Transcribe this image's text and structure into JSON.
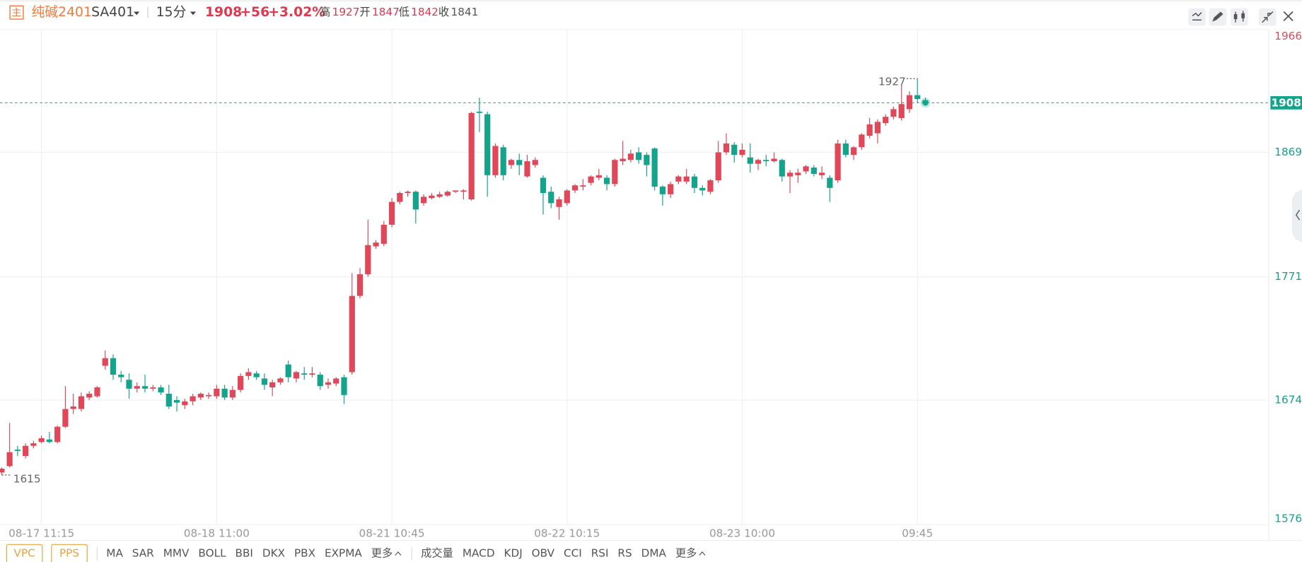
{
  "header": {
    "badge": "主",
    "symbol_name": "纯碱2401",
    "code": "SA401",
    "period": "15分",
    "last": "1908",
    "change": "+56",
    "change_pct": "+3.02%",
    "high_label": "高",
    "high": "1927",
    "open_label": "开",
    "open": "1847",
    "low_label": "低",
    "low": "1842",
    "close_label": "收",
    "close": "1841"
  },
  "chart_data": {
    "type": "candlestick",
    "categories": [
      null,
      null,
      null,
      null,
      null,
      "08-17 11:15",
      null,
      null,
      null,
      null,
      null,
      null,
      null,
      null,
      null,
      null,
      null,
      null,
      null,
      null,
      null,
      null,
      null,
      null,
      null,
      null,
      null,
      "08-18 11:00",
      null,
      null,
      null,
      null,
      null,
      null,
      null,
      null,
      null,
      null,
      null,
      null,
      null,
      null,
      null,
      null,
      null,
      null,
      null,
      null,
      null,
      "08-21 10:45",
      null,
      null,
      null,
      null,
      null,
      null,
      null,
      null,
      null,
      null,
      null,
      null,
      null,
      null,
      null,
      null,
      null,
      null,
      null,
      null,
      null,
      "08-22 10:15",
      null,
      null,
      null,
      null,
      null,
      null,
      null,
      null,
      null,
      null,
      null,
      null,
      null,
      null,
      null,
      null,
      null,
      null,
      null,
      null,
      null,
      "08-23 10:00",
      null,
      null,
      null,
      null,
      null,
      null,
      null,
      null,
      null,
      null,
      null,
      null,
      null,
      null,
      null,
      null,
      null,
      null,
      null,
      null,
      null,
      "09:45",
      null
    ],
    "open": [
      1617,
      1622,
      1635,
      1630,
      1638,
      1641,
      1643,
      1641,
      1653,
      1667,
      1667,
      1676,
      1677,
      1701,
      1707,
      1694,
      1690,
      1683,
      1685,
      1683,
      1684,
      1679,
      1674,
      1670,
      1673,
      1676,
      1677,
      1677,
      1683,
      1676,
      1682,
      1693,
      1695,
      1691,
      1684,
      1688,
      1702,
      1691,
      1695,
      1694,
      1694,
      1686,
      1687,
      1692,
      1696,
      1756,
      1773,
      1795,
      1797,
      1812,
      1830,
      1837,
      1838,
      1829,
      1833,
      1834,
      1835,
      1838,
      1838,
      1832,
      1901,
      1899,
      1851,
      1873,
      1859,
      1863,
      1850,
      1859,
      1849,
      1838,
      1826,
      1829,
      1839,
      1842,
      1845,
      1849,
      1849,
      1844,
      1862,
      1863,
      1869,
      1867,
      1872,
      1842,
      1836,
      1846,
      1846,
      1850,
      1841,
      1838,
      1847,
      1869,
      1875,
      1867,
      1865,
      1860,
      1863,
      1862,
      1863,
      1850,
      1851,
      1854,
      1857,
      1851,
      1849,
      1847,
      1876,
      1867,
      1873,
      1882,
      1884,
      1892,
      1897,
      1896,
      1903,
      1914,
      1910
    ],
    "high": [
      1621,
      1656,
      1638,
      1640,
      1642,
      1646,
      1649,
      1654,
      1685,
      1679,
      1680,
      1681,
      1685,
      1713,
      1710,
      1697,
      1695,
      1688,
      1694,
      1686,
      1686,
      1686,
      1677,
      1675,
      1679,
      1680,
      1680,
      1686,
      1686,
      1685,
      1695,
      1699,
      1697,
      1695,
      1690,
      1692,
      1705,
      1697,
      1700,
      1700,
      1696,
      1691,
      1692,
      1694,
      1774,
      1778,
      1816,
      1800,
      1815,
      1833,
      1838,
      1839,
      1839,
      1836,
      1837,
      1838,
      1839,
      1839,
      1840,
      1901,
      1912,
      1901,
      1876,
      1875,
      1864,
      1868,
      1867,
      1865,
      1851,
      1842,
      1834,
      1840,
      1844,
      1848,
      1851,
      1856,
      1851,
      1864,
      1878,
      1871,
      1873,
      1869,
      1873,
      1843,
      1846,
      1851,
      1856,
      1852,
      1843,
      1848,
      1878,
      1884,
      1877,
      1876,
      1876,
      1864,
      1867,
      1869,
      1864,
      1855,
      1856,
      1859,
      1859,
      1858,
      1851,
      1879,
      1879,
      1874,
      1884,
      1896,
      1895,
      1899,
      1905,
      1922,
      1917,
      1927,
      1912
    ],
    "low": [
      1615,
      1621,
      1630,
      1628,
      1636,
      1640,
      1640,
      1640,
      1652,
      1663,
      1665,
      1674,
      1676,
      1698,
      1690,
      1688,
      1675,
      1680,
      1680,
      1681,
      1678,
      1667,
      1665,
      1667,
      1670,
      1674,
      1675,
      1675,
      1674,
      1674,
      1680,
      1690,
      1690,
      1682,
      1677,
      1686,
      1688,
      1688,
      1690,
      1692,
      1682,
      1683,
      1685,
      1671,
      1694,
      1754,
      1771,
      1793,
      1795,
      1810,
      1828,
      1834,
      1813,
      1827,
      1832,
      1833,
      1834,
      1837,
      1832,
      1831,
      1885,
      1834,
      1849,
      1847,
      1856,
      1851,
      1849,
      1857,
      1820,
      1825,
      1816,
      1827,
      1837,
      1839,
      1843,
      1847,
      1839,
      1842,
      1859,
      1861,
      1860,
      1850,
      1839,
      1827,
      1833,
      1844,
      1844,
      1837,
      1835,
      1836,
      1845,
      1867,
      1861,
      1865,
      1853,
      1855,
      1858,
      1861,
      1846,
      1837,
      1845,
      1852,
      1850,
      1848,
      1830,
      1845,
      1865,
      1863,
      1871,
      1880,
      1876,
      1890,
      1895,
      1894,
      1900,
      1908,
      1906
    ],
    "close": [
      1620,
      1633,
      1634,
      1638,
      1640,
      1644,
      1641,
      1653,
      1667,
      1669,
      1677,
      1679,
      1684,
      1707,
      1694,
      1692,
      1683,
      1685,
      1683,
      1684,
      1680,
      1669,
      1672,
      1673,
      1677,
      1679,
      1678,
      1683,
      1676,
      1682,
      1693,
      1696,
      1692,
      1686,
      1688,
      1691,
      1692,
      1696,
      1694,
      1695,
      1685,
      1688,
      1691,
      1678,
      1756,
      1773,
      1796,
      1798,
      1812,
      1830,
      1837,
      1838,
      1824,
      1834,
      1835,
      1836,
      1838,
      1839,
      1839,
      1900,
      1900,
      1851,
      1874,
      1851,
      1863,
      1859,
      1862,
      1863,
      1837,
      1829,
      1832,
      1839,
      1843,
      1843,
      1850,
      1851,
      1844,
      1863,
      1864,
      1868,
      1863,
      1859,
      1842,
      1836,
      1844,
      1850,
      1850,
      1841,
      1839,
      1847,
      1869,
      1876,
      1867,
      1871,
      1860,
      1863,
      1862,
      1864,
      1850,
      1853,
      1853,
      1858,
      1852,
      1853,
      1841,
      1876,
      1867,
      1873,
      1883,
      1891,
      1893,
      1897,
      1903,
      1907,
      1914,
      1911,
      1908
    ],
    "ylim": [
      1576,
      1966
    ],
    "yticks": [
      1576,
      1674,
      1771,
      1869,
      1966
    ],
    "grid": true,
    "up_color": "#e0485a",
    "down_color": "#14a38b"
  },
  "toolbar": {
    "tools": [
      "VPC",
      "PPS"
    ],
    "main": [
      "MA",
      "SAR",
      "MMV",
      "BOLL",
      "BBI",
      "DKX",
      "PBX",
      "EXPMA",
      "更多"
    ],
    "sub": [
      "成交量",
      "MACD",
      "KDJ",
      "OBV",
      "CCI",
      "RSI",
      "RS",
      "DMA",
      "更多"
    ]
  }
}
